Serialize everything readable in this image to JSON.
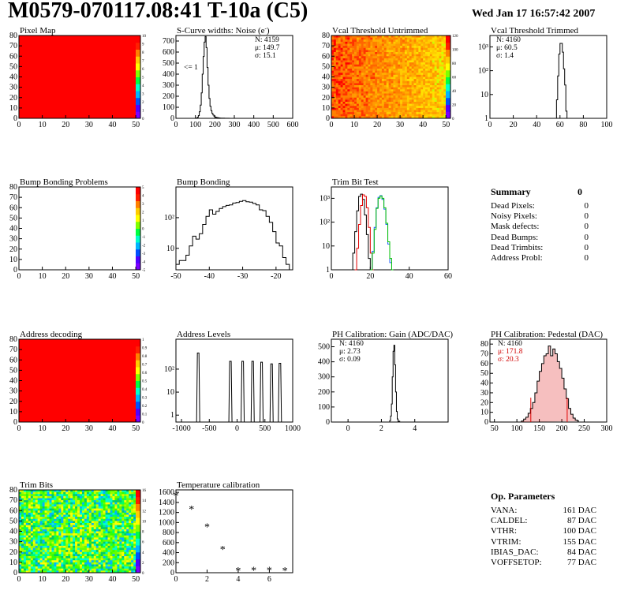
{
  "header": {
    "title": "M0579-070117.08:41 T-10a (C5)",
    "date": "Wed Jan 17 16:57:42 2007"
  },
  "colors": {
    "map_red": "#ff0000",
    "hist_line": "#000000",
    "trim_red": "#e00000",
    "trim_green": "#00c000",
    "trim_blue": "#1f5fff",
    "stat_red": "#d00000"
  },
  "chart_data": [
    {
      "id": "pixel_map",
      "type": "heatmap",
      "title": "Pixel Map",
      "xlim": [
        0,
        52
      ],
      "ylim": [
        0,
        80
      ],
      "xticks": [
        "0",
        "10",
        "20",
        "30",
        "40",
        "50"
      ],
      "yticks": [
        "0",
        "10",
        "20",
        "30",
        "40",
        "50",
        "60",
        "70",
        "80"
      ],
      "colorbar_ticks": [
        "0",
        "1",
        "2",
        "3",
        "4",
        "5",
        "6",
        "7",
        "8",
        "9",
        "10"
      ],
      "fill": "uniform-red"
    },
    {
      "id": "scurve_noise",
      "type": "bar",
      "title": "S-Curve widths: Noise (e",
      "title_sup": "-",
      "title_end": ")",
      "xlim": [
        0,
        600
      ],
      "ylim": [
        0,
        750
      ],
      "xticks": [
        "0",
        "100",
        "200",
        "300",
        "400",
        "500",
        "600"
      ],
      "yticks": [
        "0",
        "100",
        "200",
        "300",
        "400",
        "500",
        "600",
        "700"
      ],
      "stats": [
        "N: 4159",
        "μ: 149.7",
        "σ: 15.1"
      ],
      "annotation": "<= 1",
      "x": [
        100,
        105,
        110,
        115,
        120,
        125,
        130,
        135,
        140,
        145,
        150,
        155,
        160,
        165,
        170,
        175,
        180,
        185,
        190,
        195,
        200,
        205,
        210,
        215,
        220,
        225,
        230,
        240,
        250,
        260,
        275
      ],
      "values": [
        0,
        3,
        10,
        25,
        60,
        120,
        230,
        400,
        560,
        690,
        740,
        640,
        460,
        300,
        180,
        110,
        70,
        45,
        30,
        20,
        12,
        9,
        6,
        5,
        4,
        3,
        2,
        2,
        1,
        1,
        0
      ]
    },
    {
      "id": "vcal_untrimmed",
      "type": "heatmap",
      "title": "Vcal Threshold Untrimmed",
      "xlim": [
        0,
        52
      ],
      "ylim": [
        0,
        80
      ],
      "xticks": [
        "0",
        "10",
        "20",
        "30",
        "40",
        "50"
      ],
      "yticks": [
        "0",
        "10",
        "20",
        "30",
        "40",
        "50",
        "60",
        "70",
        "80"
      ],
      "colorbar_ticks": [
        "0",
        "20",
        "40",
        "60",
        "80",
        "100",
        "120"
      ],
      "fill": "noisy-orange"
    },
    {
      "id": "vcal_trimmed",
      "type": "bar",
      "title": "Vcal Threshold Trimmed",
      "log_y": true,
      "xlim": [
        0,
        100
      ],
      "ylim": [
        1,
        3000
      ],
      "xticks": [
        "0",
        "20",
        "40",
        "60",
        "80",
        "100"
      ],
      "yticks": [
        "1",
        "10",
        "10²",
        "10³"
      ],
      "stats": [
        "N: 4160",
        "μ: 60.5",
        "σ:  1.4"
      ],
      "x": [
        56,
        57,
        58,
        59,
        60,
        61,
        62,
        63,
        64,
        65,
        66
      ],
      "values": [
        0,
        6,
        60,
        500,
        1400,
        1400,
        600,
        120,
        25,
        2,
        0
      ]
    },
    {
      "id": "bump_problems",
      "type": "heatmap",
      "title": "Bump Bonding Problems",
      "xlim": [
        0,
        52
      ],
      "ylim": [
        0,
        80
      ],
      "xticks": [
        "0",
        "10",
        "20",
        "30",
        "40",
        "50"
      ],
      "yticks": [
        "0",
        "10",
        "20",
        "30",
        "40",
        "50",
        "60",
        "70",
        "80"
      ],
      "colorbar_ticks": [
        "-5",
        "-4",
        "-3",
        "-2",
        "-1",
        "0",
        "1",
        "2",
        "3",
        "4",
        "5"
      ],
      "fill": "empty"
    },
    {
      "id": "bump_bonding",
      "type": "bar",
      "title": "Bump Bonding",
      "log_y": true,
      "xlim": [
        -50,
        -15
      ],
      "ylim": [
        2,
        1000
      ],
      "xticks": [
        "-50",
        "-40",
        "-30",
        "-20"
      ],
      "yticks": [
        "10",
        "10²"
      ],
      "x": [
        -50,
        -49,
        -48,
        -47,
        -46,
        -45,
        -44,
        -43,
        -42,
        -41,
        -40,
        -39,
        -38,
        -37,
        -36,
        -35,
        -34,
        -33,
        -32,
        -31,
        -30,
        -29,
        -28,
        -27,
        -26,
        -25,
        -24,
        -23,
        -22,
        -21,
        -20,
        -19,
        -18,
        -17,
        -16
      ],
      "values": [
        3,
        4,
        4,
        6,
        12,
        25,
        20,
        30,
        60,
        110,
        180,
        130,
        160,
        200,
        230,
        250,
        260,
        300,
        310,
        340,
        360,
        330,
        320,
        290,
        260,
        180,
        170,
        110,
        70,
        35,
        15,
        12,
        5,
        3,
        2
      ]
    },
    {
      "id": "trim_bits",
      "type": "line",
      "title": "Trim Bit Test",
      "log_y": true,
      "xlim": [
        0,
        60
      ],
      "ylim": [
        1,
        3000
      ],
      "xticks": [
        "0",
        "20",
        "40",
        "60"
      ],
      "yticks": [
        "1",
        "10",
        "10²",
        "10³"
      ],
      "series_colors": [
        "#000000",
        "#e00000",
        "#1f5fff",
        "#00c000"
      ],
      "series": [
        {
          "x": [
            10,
            11,
            12,
            13,
            14,
            15,
            16,
            17,
            18,
            19,
            20
          ],
          "values": [
            1,
            5,
            40,
            300,
            1200,
            1500,
            900,
            200,
            30,
            3,
            1
          ]
        },
        {
          "x": [
            12,
            13,
            14,
            15,
            16,
            17,
            18,
            19,
            20,
            21
          ],
          "values": [
            1,
            8,
            80,
            500,
            1400,
            1200,
            400,
            60,
            5,
            1
          ]
        },
        {
          "x": [
            20,
            21,
            22,
            23,
            24,
            25,
            26,
            27,
            28,
            29,
            30,
            31
          ],
          "values": [
            1,
            6,
            60,
            400,
            1100,
            1300,
            900,
            350,
            80,
            12,
            2,
            1
          ]
        },
        {
          "x": [
            20,
            21,
            22,
            23,
            24,
            25,
            26,
            27,
            28,
            29,
            30,
            31
          ],
          "values": [
            1,
            5,
            50,
            380,
            1000,
            1250,
            1000,
            400,
            90,
            15,
            3,
            1
          ]
        }
      ]
    },
    {
      "id": "address_decoding",
      "type": "heatmap",
      "title": "Address decoding",
      "xlim": [
        0,
        52
      ],
      "ylim": [
        0,
        80
      ],
      "xticks": [
        "0",
        "10",
        "20",
        "30",
        "40",
        "50"
      ],
      "yticks": [
        "0",
        "10",
        "20",
        "30",
        "40",
        "50",
        "60",
        "70",
        "80"
      ],
      "colorbar_ticks": [
        "0",
        "0.1",
        "0.2",
        "0.3",
        "0.4",
        "0.5",
        "0.6",
        "0.7",
        "0.8",
        "0.9",
        "1"
      ],
      "fill": "uniform-red"
    },
    {
      "id": "address_levels",
      "type": "line",
      "title": "Address Levels",
      "log_y": true,
      "xlim": [
        -1100,
        1000
      ],
      "ylim": [
        0.5,
        2000
      ],
      "xticks": [
        "-1000",
        "-500",
        "0",
        "500",
        "1000"
      ],
      "yticks": [
        "1",
        "10",
        "10²"
      ],
      "peaks": [
        -700,
        -120,
        100,
        280,
        440,
        620,
        770
      ],
      "peak_heights": [
        500,
        220,
        220,
        220,
        200,
        170,
        180
      ]
    },
    {
      "id": "ph_gain",
      "type": "bar",
      "title": "PH Calibration: Gain (ADC/DAC)",
      "xlim": [
        -1,
        6
      ],
      "ylim": [
        0,
        550
      ],
      "xticks": [
        "0",
        "2",
        "4"
      ],
      "yticks": [
        "0",
        "100",
        "200",
        "300",
        "400",
        "500"
      ],
      "stats": [
        "N: 4160",
        "μ: 2.73",
        "σ: 0.09"
      ],
      "x": [
        2.4,
        2.5,
        2.55,
        2.6,
        2.65,
        2.7,
        2.75,
        2.8,
        2.85,
        2.9,
        2.95,
        3.0,
        3.1
      ],
      "values": [
        0,
        10,
        40,
        120,
        300,
        470,
        510,
        380,
        200,
        70,
        20,
        5,
        0
      ]
    },
    {
      "id": "ph_pedestal",
      "type": "bar",
      "title": "PH Calibration: Pedestal (DAC)",
      "xlim": [
        40,
        300
      ],
      "ylim": [
        0,
        85
      ],
      "xticks": [
        "50",
        "100",
        "150",
        "200",
        "250",
        "300"
      ],
      "yticks": [
        "0",
        "10",
        "20",
        "30",
        "40",
        "50",
        "60",
        "70",
        "80"
      ],
      "stats": [
        "N: 4160",
        "μ: 171.8",
        "σ: 20.3"
      ],
      "cut_lines": [
        131,
        212
      ],
      "x": [
        110,
        115,
        120,
        125,
        130,
        135,
        140,
        145,
        150,
        155,
        160,
        165,
        170,
        175,
        180,
        185,
        190,
        195,
        200,
        205,
        210,
        215,
        220,
        225,
        230,
        235
      ],
      "values": [
        1,
        3,
        5,
        9,
        14,
        20,
        30,
        42,
        52,
        60,
        68,
        70,
        78,
        68,
        75,
        70,
        62,
        55,
        45,
        34,
        24,
        14,
        8,
        4,
        2,
        1
      ]
    },
    {
      "id": "trim_bits_map",
      "type": "heatmap",
      "title": "Trim Bits",
      "xlim": [
        0,
        52
      ],
      "ylim": [
        0,
        80
      ],
      "xticks": [
        "0",
        "10",
        "20",
        "30",
        "40",
        "50"
      ],
      "yticks": [
        "0",
        "10",
        "20",
        "30",
        "40",
        "50",
        "60",
        "70",
        "80"
      ],
      "colorbar_ticks": [
        "0",
        "2",
        "4",
        "6",
        "8",
        "10",
        "12",
        "14",
        "16"
      ],
      "fill": "noisy-green"
    },
    {
      "id": "temperature",
      "type": "scatter",
      "title": "Temperature calibration",
      "xlim": [
        0,
        7.5
      ],
      "ylim": [
        0,
        1650
      ],
      "xticks": [
        "0",
        "2",
        "4",
        "6"
      ],
      "yticks": [
        "0",
        "200",
        "400",
        "600",
        "800",
        "1000",
        "1200",
        "1400",
        "1600"
      ],
      "x": [
        0,
        1,
        2,
        3,
        4,
        5,
        6,
        7
      ],
      "values": [
        1540,
        1270,
        920,
        470,
        50,
        55,
        55,
        50
      ]
    }
  ],
  "summary": {
    "title": "Summary",
    "total": "0",
    "rows": [
      {
        "label": "Dead Pixels:",
        "value": "0"
      },
      {
        "label": "Noisy Pixels:",
        "value": "0"
      },
      {
        "label": "Mask defects:",
        "value": "0"
      },
      {
        "label": "Dead Bumps:",
        "value": "0"
      },
      {
        "label": "Dead Trimbits:",
        "value": "0"
      },
      {
        "label": "Address Probl:",
        "value": "0"
      }
    ]
  },
  "op_params": {
    "title": "Op. Parameters",
    "rows": [
      {
        "label": "VANA:",
        "value": "161 DAC"
      },
      {
        "label": "CALDEL:",
        "value": "87 DAC"
      },
      {
        "label": "VTHR:",
        "value": "100 DAC"
      },
      {
        "label": "VTRIM:",
        "value": "155 DAC"
      },
      {
        "label": "IBIAS_DAC:",
        "value": "84 DAC"
      },
      {
        "label": "VOFFSETOP:",
        "value": "77 DAC"
      }
    ]
  }
}
